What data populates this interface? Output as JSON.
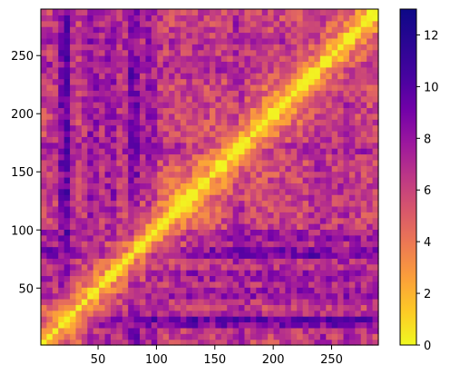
{
  "chart_data": {
    "type": "heatmap",
    "title": "",
    "xlabel": "",
    "ylabel": "",
    "colormap": "plasma_r",
    "xlim": [
      1,
      290
    ],
    "ylim": [
      1,
      290
    ],
    "x_ticks": [
      50,
      100,
      150,
      200,
      250
    ],
    "y_ticks": [
      50,
      100,
      150,
      200,
      250
    ],
    "x_tick_labels": [
      "50",
      "100",
      "150",
      "200",
      "250"
    ],
    "y_tick_labels": [
      "50",
      "100",
      "150",
      "200",
      "250"
    ],
    "color_range": [
      0,
      13
    ],
    "colorbar_ticks": [
      0,
      2,
      4,
      6,
      8,
      10,
      12
    ],
    "colorbar_tick_labels": [
      "0",
      "2",
      "4",
      "6",
      "8",
      "10",
      "12"
    ],
    "grid": false,
    "diagonal_value": 0,
    "description_note": "Symmetric distance-like matrix; zero on the diagonal, high values (dark purple) in bands near x≈20–80 and y≈20–90."
  }
}
